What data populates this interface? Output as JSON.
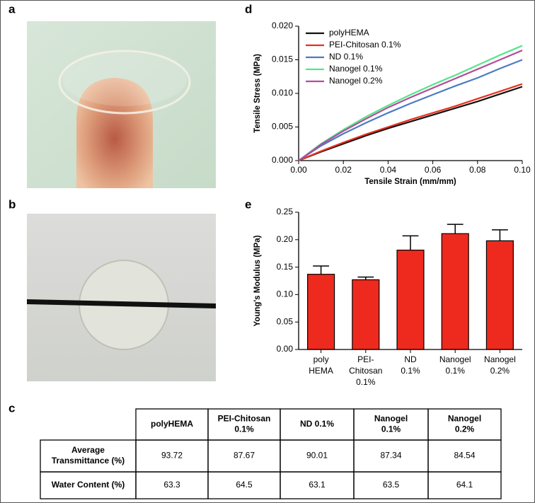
{
  "panel_labels": [
    "a",
    "b",
    "c",
    "d",
    "e"
  ],
  "chart_data": [
    {
      "type": "line",
      "x_label": "Tensile Strain (mm/mm)",
      "y_label": "Tensile Stress (MPa)",
      "x": [
        0,
        0.01,
        0.02,
        0.03,
        0.04,
        0.05,
        0.06,
        0.07,
        0.08,
        0.09,
        0.1
      ],
      "series": [
        {
          "name": "polyHEMA",
          "color": "#111111",
          "values": [
            0,
            0.0013,
            0.0025,
            0.0037,
            0.0048,
            0.0058,
            0.0068,
            0.0078,
            0.0088,
            0.0099,
            0.011
          ]
        },
        {
          "name": "PEI-Chitosan 0.1%",
          "color": "#e8301e",
          "values": [
            0,
            0.0014,
            0.0027,
            0.0039,
            0.005,
            0.0061,
            0.0071,
            0.0081,
            0.0092,
            0.0103,
            0.0114
          ]
        },
        {
          "name": "ND 0.1%",
          "color": "#4a7cc0",
          "values": [
            0,
            0.0022,
            0.004,
            0.0056,
            0.0071,
            0.0085,
            0.0098,
            0.0111,
            0.0123,
            0.0137,
            0.015
          ]
        },
        {
          "name": "Nanogel 0.1%",
          "color": "#55e58a",
          "values": [
            0,
            0.0025,
            0.0046,
            0.0065,
            0.0082,
            0.0098,
            0.0113,
            0.0127,
            0.0142,
            0.0157,
            0.0171
          ]
        },
        {
          "name": "Nanogel 0.2%",
          "color": "#b24e9c",
          "values": [
            0,
            0.0024,
            0.0044,
            0.0062,
            0.0079,
            0.0094,
            0.0108,
            0.0122,
            0.0136,
            0.015,
            0.0164
          ]
        }
      ],
      "xlim": [
        0,
        0.1
      ],
      "xticks": [
        {
          "value": 0,
          "label": "0.00"
        },
        0.02,
        0.04,
        0.06,
        0.08,
        {
          "value": 0.1,
          "label": "0.10"
        }
      ],
      "ylim": [
        0,
        0.02
      ],
      "yticks": [
        {
          "value": 0,
          "label": "0.000"
        },
        0.005,
        {
          "value": 0.01,
          "label": "0.010"
        },
        0.015,
        {
          "value": 0.02,
          "label": "0.020"
        }
      ],
      "legend": "top-left"
    },
    {
      "type": "bar",
      "y_label": "Young's Modulus (MPa)",
      "categories": [
        [
          "poly",
          "HEMA"
        ],
        [
          "PEI-",
          "Chitosan",
          "0.1%"
        ],
        [
          "ND",
          "0.1%"
        ],
        [
          "Nanogel",
          "0.1%"
        ],
        [
          "Nanogel",
          "0.2%"
        ]
      ],
      "values": [
        0.137,
        0.127,
        0.181,
        0.211,
        0.198
      ],
      "errors": [
        0.015,
        0.005,
        0.026,
        0.017,
        0.02
      ],
      "color": "#ee2a1e",
      "ylim": [
        0,
        0.25
      ],
      "yticks": [
        {
          "value": 0,
          "label": "0.00"
        },
        0.05,
        {
          "value": 0.1,
          "label": "0.10"
        },
        0.15,
        {
          "value": 0.2,
          "label": "0.20"
        },
        0.25
      ]
    }
  ],
  "table": {
    "header": [
      [
        "polyHEMA"
      ],
      [
        "PEI-Chitosan",
        "0.1%"
      ],
      [
        "ND 0.1%"
      ],
      [
        "Nanogel",
        "0.1%"
      ],
      [
        "Nanogel",
        "0.2%"
      ]
    ],
    "rows": [
      {
        "label": [
          "Average",
          "Transmittance (%)"
        ],
        "values": [
          93.72,
          87.67,
          90.01,
          87.34,
          84.54
        ]
      },
      {
        "label": [
          "Water Content (%)"
        ],
        "values": [
          63.3,
          64.5,
          63.1,
          63.5,
          64.1
        ]
      }
    ]
  }
}
